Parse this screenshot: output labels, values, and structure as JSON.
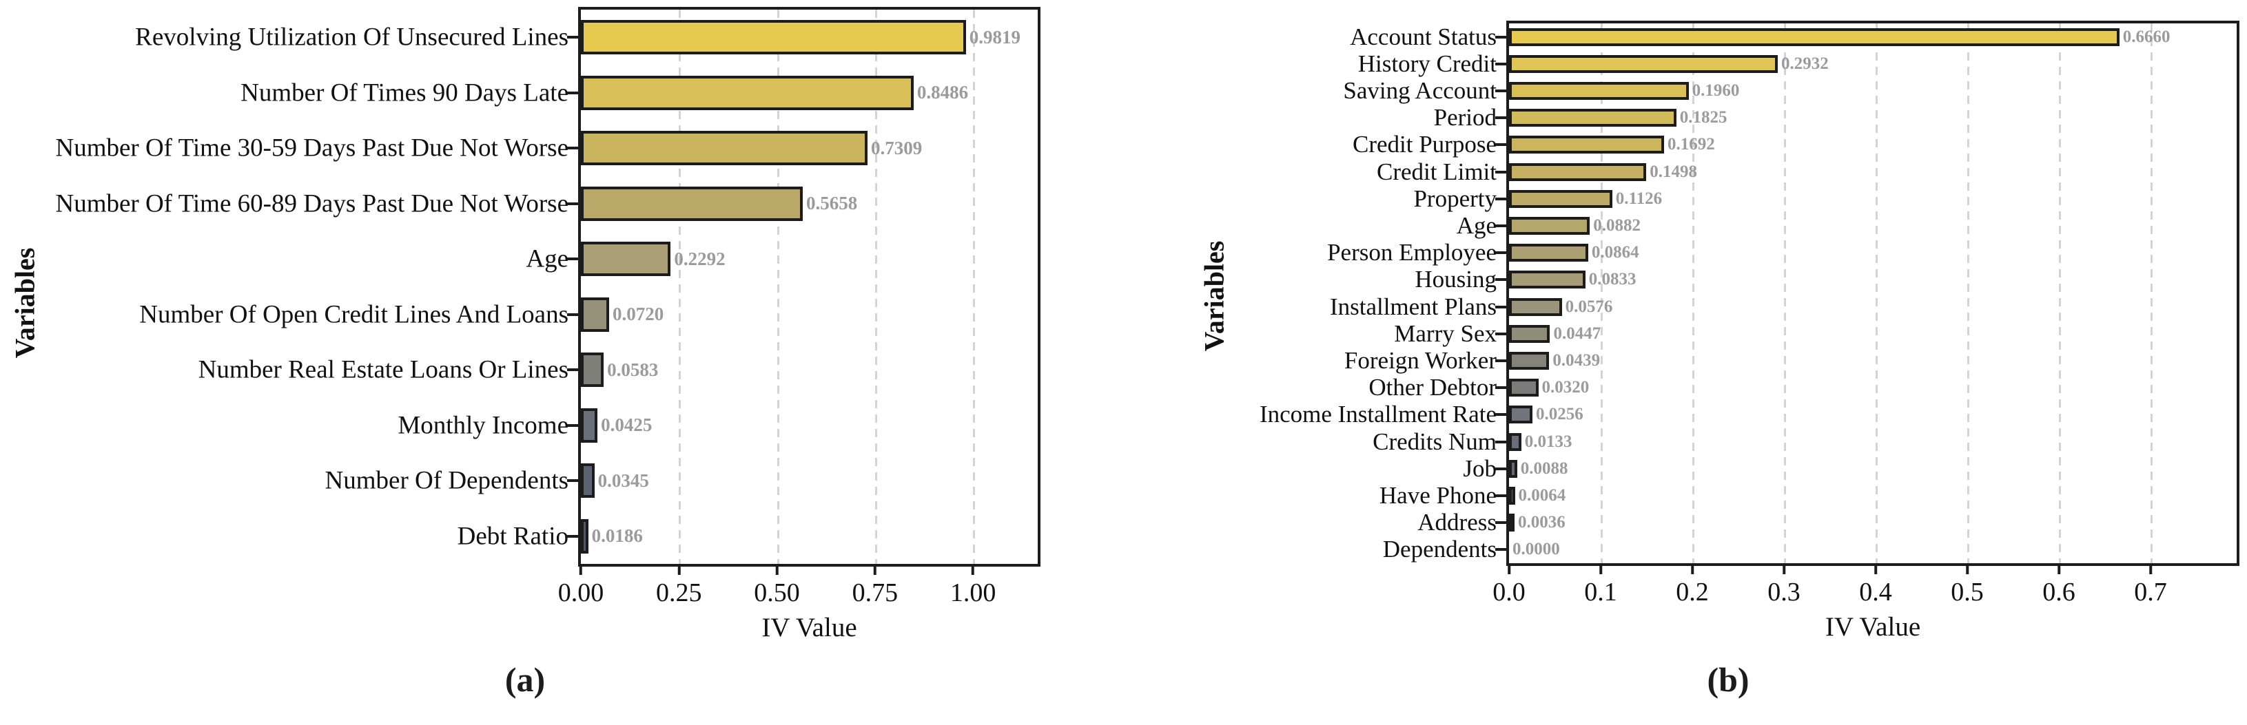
{
  "figure": {
    "background": "#ffffff",
    "colors": {
      "spine": "#1c1c1c",
      "gridline": "#d4d4d4",
      "bar_outline": "#1c1c1c",
      "value_label": "#9b9b9b",
      "text": "#111111"
    }
  },
  "chart_data": [
    {
      "type": "bar",
      "orientation": "horizontal",
      "caption": "(a)",
      "xlabel": "IV Value",
      "ylabel": "Variables",
      "grid": true,
      "grid_style": "vertical-dashed",
      "legend": "none",
      "xlim": [
        0,
        1.165
      ],
      "xticks": [
        {
          "value": 0.0,
          "label": "0.00"
        },
        {
          "value": 0.25,
          "label": "0.25"
        },
        {
          "value": 0.5,
          "label": "0.50"
        },
        {
          "value": 0.75,
          "label": "0.75"
        },
        {
          "value": 1.0,
          "label": "1.00"
        }
      ],
      "categories": [
        "Revolving Utilization Of Unsecured Lines",
        "Number Of Times 90 Days Late",
        "Number Of Time 30-59 Days Past Due Not Worse",
        "Number Of Time 60-89 Days Past Due Not Worse",
        "Age",
        "Number Of Open Credit Lines And Loans",
        "Number Real Estate Loans Or Lines",
        "Monthly Income",
        "Number Of Dependents",
        "Debt Ratio"
      ],
      "values": [
        0.9819,
        0.8486,
        0.7309,
        0.5658,
        0.2292,
        0.072,
        0.0583,
        0.0425,
        0.0345,
        0.0186
      ],
      "value_labels": [
        "0.9819",
        "0.8486",
        "0.7309",
        "0.5658",
        "0.2292",
        "0.0720",
        "0.0583",
        "0.0425",
        "0.0345",
        "0.0186"
      ],
      "bar_colors": [
        "#e5ca4f",
        "#d8bf57",
        "#cab55e",
        "#baa969",
        "#a99e74",
        "#959078",
        "#7f7f7a",
        "#6a6f79",
        "#5c6373",
        "#4d576d"
      ]
    },
    {
      "type": "bar",
      "orientation": "horizontal",
      "caption": "(b)",
      "xlabel": "IV Value",
      "ylabel": "Variables",
      "grid": true,
      "grid_style": "vertical-dashed",
      "legend": "none",
      "xlim": [
        0,
        0.794
      ],
      "xticks": [
        {
          "value": 0.0,
          "label": "0.0"
        },
        {
          "value": 0.1,
          "label": "0.1"
        },
        {
          "value": 0.2,
          "label": "0.2"
        },
        {
          "value": 0.3,
          "label": "0.3"
        },
        {
          "value": 0.4,
          "label": "0.4"
        },
        {
          "value": 0.5,
          "label": "0.5"
        },
        {
          "value": 0.6,
          "label": "0.6"
        },
        {
          "value": 0.7,
          "label": "0.7"
        }
      ],
      "categories": [
        "Account Status",
        "History Credit",
        "Saving Account",
        "Period",
        "Credit Purpose",
        "Credit Limit",
        "Property",
        "Age",
        "Person Employee",
        "Housing",
        "Installment Plans",
        "Marry Sex",
        "Foreign Worker",
        "Other Debtor",
        "Income Installment Rate",
        "Credits Num",
        "Job",
        "Have Phone",
        "Address",
        "Dependents"
      ],
      "values": [
        0.666,
        0.2932,
        0.196,
        0.1825,
        0.1692,
        0.1498,
        0.1126,
        0.0882,
        0.0864,
        0.0833,
        0.0576,
        0.0447,
        0.0439,
        0.032,
        0.0256,
        0.0133,
        0.0088,
        0.0064,
        0.0036,
        0.0
      ],
      "value_labels": [
        "0.6660",
        "0.2932",
        "0.1960",
        "0.1825",
        "0.1692",
        "0.1498",
        "0.1126",
        "0.0882",
        "0.0864",
        "0.0833",
        "0.0576",
        "0.0447",
        "0.0439",
        "0.0320",
        "0.0256",
        "0.0133",
        "0.0088",
        "0.0064",
        "0.0036",
        "0.0000"
      ],
      "bar_colors": [
        "#e5ca4f",
        "#dfc553",
        "#d8c056",
        "#d2bb5a",
        "#ccb65d",
        "#c5b161",
        "#bdab67",
        "#b5a66c",
        "#aca072",
        "#a59b77",
        "#9b947a",
        "#908c7a",
        "#86847a",
        "#7b7c7a",
        "#71747a",
        "#696e78",
        "#626875",
        "#5b6272",
        "#545d70",
        "#4d576d"
      ]
    }
  ]
}
